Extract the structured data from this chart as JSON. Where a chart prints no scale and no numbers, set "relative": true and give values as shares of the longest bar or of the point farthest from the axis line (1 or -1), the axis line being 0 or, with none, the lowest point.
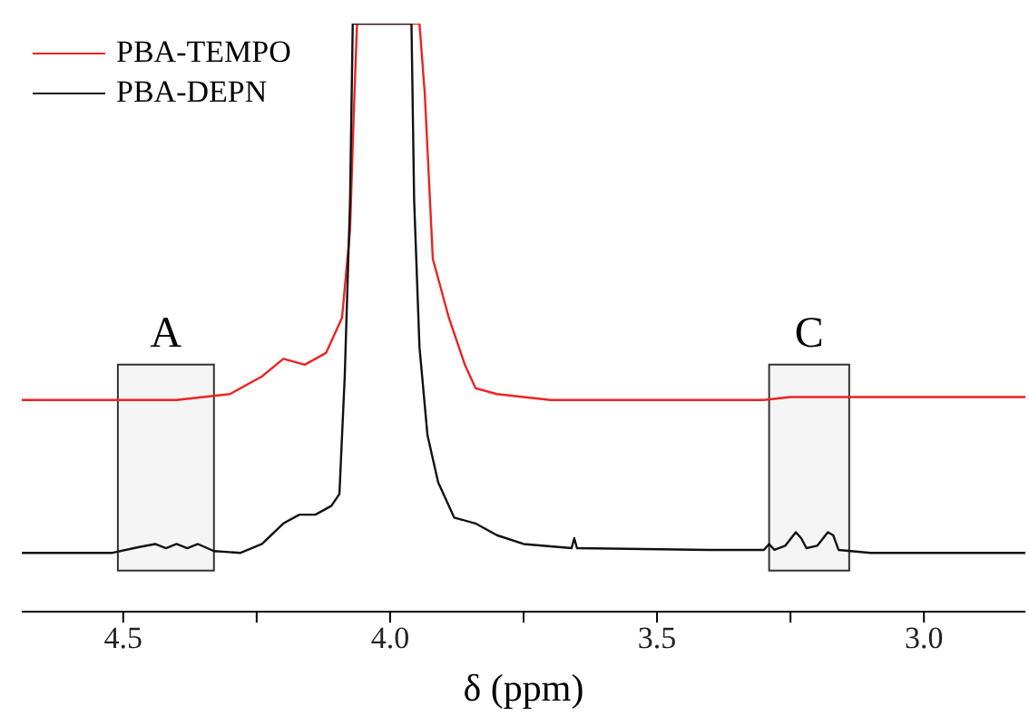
{
  "chart_data": {
    "type": "line",
    "xlabel": "δ (ppm)",
    "relative": true,
    "tick_labels": "x",
    "legend": "top left",
    "grid": false,
    "marker": "none",
    "line_style": "solid",
    "xlim": [
      4.69,
      2.81
    ],
    "xticks": [
      4.5,
      {
        "value": 4.25,
        "label": null
      },
      {
        "value": 4.0,
        "label": "4.0"
      },
      {
        "value": 3.75,
        "label": null
      },
      3.5,
      {
        "value": 3.25,
        "label": null
      },
      {
        "value": 3.0,
        "label": "3.0"
      }
    ],
    "bands": [
      {
        "axis": "x",
        "from": 4.51,
        "to": 4.33,
        "label": "A",
        "color": "#333333"
      },
      {
        "axis": "x",
        "from": 3.29,
        "to": 3.14,
        "label": "C",
        "color": "#333333"
      }
    ],
    "series": [
      {
        "name": "PBA-TEMPO",
        "color": "#ee2222",
        "x": [
          4.69,
          4.4,
          4.3,
          4.24,
          4.2,
          4.16,
          4.12,
          4.09,
          4.075,
          4.068,
          4.062,
          3.945,
          3.935,
          3.92,
          3.89,
          3.86,
          3.84,
          3.8,
          3.7,
          3.3,
          3.25,
          2.81
        ],
        "values": [
          0.36,
          0.36,
          0.37,
          0.4,
          0.43,
          0.42,
          0.44,
          0.5,
          0.65,
          0.85,
          1,
          1,
          0.88,
          0.6,
          0.5,
          0.42,
          0.38,
          0.37,
          0.36,
          0.36,
          0.365,
          0.365
        ]
      },
      {
        "name": "PBA-DEPN",
        "color": "#111111",
        "x": [
          4.69,
          4.52,
          4.47,
          4.44,
          4.42,
          4.4,
          4.38,
          4.36,
          4.33,
          4.28,
          4.24,
          4.2,
          4.17,
          4.14,
          4.11,
          4.095,
          4.085,
          4.075,
          4.07,
          3.96,
          3.955,
          3.945,
          3.93,
          3.91,
          3.88,
          3.84,
          3.8,
          3.75,
          3.66,
          3.655,
          3.65,
          3.4,
          3.3,
          3.29,
          3.28,
          3.26,
          3.24,
          3.23,
          3.22,
          3.2,
          3.18,
          3.17,
          3.16,
          3.1,
          2.81
        ],
        "values": [
          0.1,
          0.1,
          0.11,
          0.115,
          0.108,
          0.115,
          0.108,
          0.115,
          0.103,
          0.1,
          0.115,
          0.15,
          0.165,
          0.165,
          0.18,
          0.2,
          0.4,
          0.7,
          1,
          1,
          0.7,
          0.45,
          0.3,
          0.22,
          0.16,
          0.15,
          0.13,
          0.115,
          0.108,
          0.125,
          0.108,
          0.105,
          0.105,
          0.115,
          0.105,
          0.112,
          0.135,
          0.125,
          0.108,
          0.112,
          0.135,
          0.13,
          0.105,
          0.1,
          0.1
        ]
      }
    ]
  }
}
